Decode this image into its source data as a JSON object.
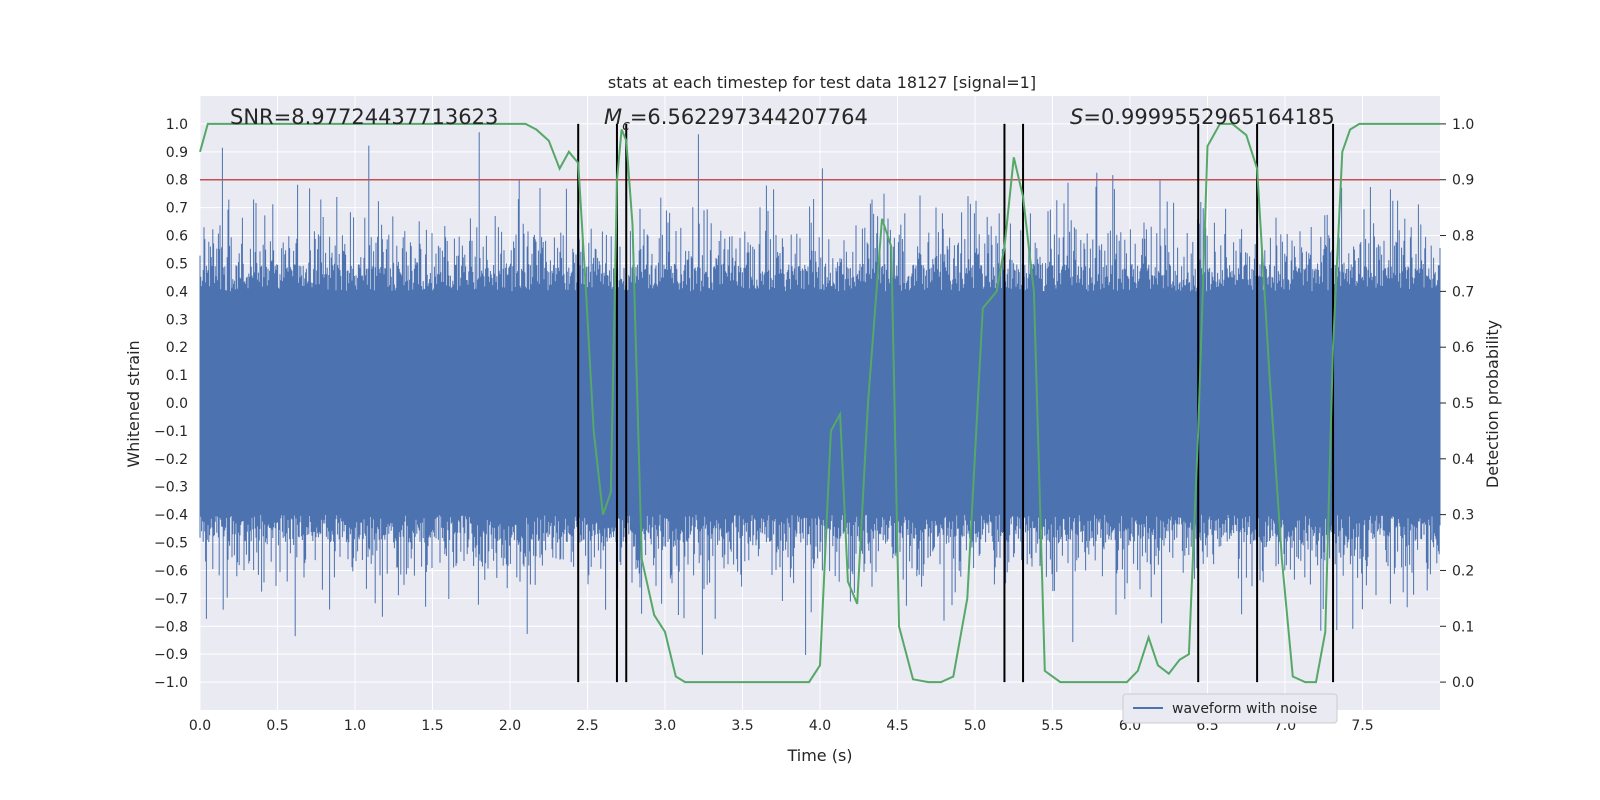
{
  "chart_data": {
    "type": "line",
    "title": "stats at each timestep for test data 18127 [signal=1]",
    "xlabel": "Time (s)",
    "ylabel": "Whitened strain",
    "y2label": "Detection probability",
    "xlim": [
      0.0,
      8.0
    ],
    "ylim": [
      -1.1,
      1.1
    ],
    "y2lim": [
      -0.05,
      1.05
    ],
    "x_ticks": [
      "0.0",
      "0.5",
      "1.0",
      "1.5",
      "2.0",
      "2.5",
      "3.0",
      "3.5",
      "4.0",
      "4.5",
      "5.0",
      "5.5",
      "6.0",
      "6.5",
      "7.0",
      "7.5"
    ],
    "y_ticks": [
      "1.0",
      "0.9",
      "0.8",
      "0.7",
      "0.6",
      "0.5",
      "0.4",
      "0.3",
      "0.2",
      "0.1",
      "0.0",
      "−0.1",
      "−0.2",
      "−0.3",
      "−0.4",
      "−0.5",
      "−0.6",
      "−0.7",
      "−0.8",
      "−0.9",
      "−1.0"
    ],
    "y2_ticks": [
      "1.0",
      "0.9",
      "0.8",
      "0.7",
      "0.6",
      "0.5",
      "0.4",
      "0.3",
      "0.2",
      "0.1",
      "0.0"
    ],
    "grid": true,
    "legend_position": "lower-right",
    "annotations": {
      "snr": "SNR=8.97724437713623",
      "mc_symbol": "M",
      "mc_sub": "c",
      "mc_value": "=6.562297344207764",
      "s_symbol": "S",
      "s_value": "=0.9999552965164185"
    },
    "threshold": {
      "y2": 0.9,
      "color": "#c44e52"
    },
    "event_lines_x": [
      2.44,
      2.69,
      2.75,
      5.19,
      5.31,
      6.44,
      6.82,
      7.31
    ],
    "series": [
      {
        "name": "waveform with noise",
        "axis": "left",
        "color": "#4c72b0",
        "description_band": {
          "typical_upper": 0.4,
          "typical_lower": -0.4,
          "peak_max": 0.97,
          "peak_min": -0.99
        }
      },
      {
        "axis": "right",
        "color": "#55a868",
        "x": [
          0.0,
          0.05,
          0.1,
          0.15,
          0.2,
          0.3,
          0.4,
          0.5,
          0.6,
          0.8,
          1.0,
          1.2,
          1.4,
          1.6,
          1.8,
          2.0,
          2.1,
          2.17,
          2.25,
          2.32,
          2.38,
          2.44,
          2.49,
          2.54,
          2.6,
          2.65,
          2.69,
          2.72,
          2.75,
          2.79,
          2.85,
          2.93,
          3.0,
          3.07,
          3.13,
          3.25,
          3.4,
          3.6,
          3.8,
          3.93,
          4.0,
          4.07,
          4.13,
          4.18,
          4.24,
          4.31,
          4.4,
          4.46,
          4.51,
          4.6,
          4.7,
          4.78,
          4.86,
          4.95,
          5.05,
          5.14,
          5.19,
          5.25,
          5.31,
          5.38,
          5.45,
          5.55,
          5.7,
          5.85,
          5.98,
          6.05,
          6.12,
          6.18,
          6.25,
          6.32,
          6.38,
          6.44,
          6.5,
          6.58,
          6.66,
          6.75,
          6.82,
          6.9,
          6.98,
          7.05,
          7.13,
          7.2,
          7.26,
          7.31,
          7.37,
          7.42,
          7.48,
          7.55,
          7.7,
          7.85,
          8.0
        ],
        "y": [
          0.95,
          1.0,
          1.0,
          1.0,
          1.0,
          1.0,
          1.0,
          1.0,
          1.0,
          1.0,
          1.0,
          1.0,
          1.0,
          1.0,
          1.0,
          1.0,
          1.0,
          0.99,
          0.97,
          0.92,
          0.95,
          0.93,
          0.7,
          0.45,
          0.3,
          0.34,
          0.9,
          0.99,
          0.97,
          0.82,
          0.22,
          0.12,
          0.09,
          0.01,
          0.0,
          0.0,
          0.0,
          0.0,
          0.0,
          0.0,
          0.03,
          0.45,
          0.48,
          0.18,
          0.14,
          0.5,
          0.83,
          0.78,
          0.1,
          0.005,
          0.0,
          0.0,
          0.01,
          0.15,
          0.67,
          0.7,
          0.78,
          0.94,
          0.87,
          0.7,
          0.02,
          0.0,
          0.0,
          0.0,
          0.0,
          0.02,
          0.08,
          0.03,
          0.015,
          0.04,
          0.05,
          0.45,
          0.96,
          1.0,
          1.0,
          0.98,
          0.92,
          0.55,
          0.22,
          0.01,
          0.0,
          0.0,
          0.09,
          0.6,
          0.95,
          0.99,
          1.0,
          1.0,
          1.0,
          1.0,
          1.0
        ]
      }
    ]
  }
}
